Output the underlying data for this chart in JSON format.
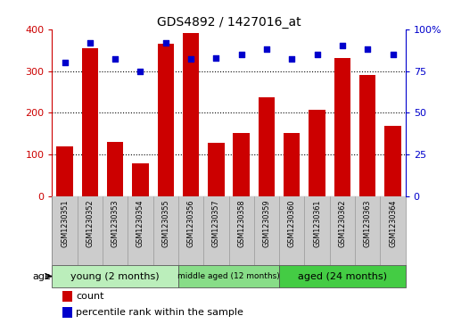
{
  "title": "GDS4892 / 1427016_at",
  "samples": [
    "GSM1230351",
    "GSM1230352",
    "GSM1230353",
    "GSM1230354",
    "GSM1230355",
    "GSM1230356",
    "GSM1230357",
    "GSM1230358",
    "GSM1230359",
    "GSM1230360",
    "GSM1230361",
    "GSM1230362",
    "GSM1230363",
    "GSM1230364"
  ],
  "counts": [
    120,
    355,
    130,
    80,
    365,
    390,
    128,
    152,
    238,
    152,
    208,
    330,
    290,
    168
  ],
  "percentiles": [
    80,
    92,
    82,
    75,
    92,
    82,
    83,
    85,
    88,
    82,
    85,
    90,
    88,
    85
  ],
  "ylim_left": [
    0,
    400
  ],
  "ylim_right": [
    0,
    100
  ],
  "yticks_left": [
    0,
    100,
    200,
    300,
    400
  ],
  "yticks_right": [
    0,
    25,
    50,
    75,
    100
  ],
  "bar_color": "#cc0000",
  "dot_color": "#0000cc",
  "groups": [
    {
      "label": "young (2 months)",
      "start": 0,
      "end": 5,
      "color": "#bbeebb"
    },
    {
      "label": "middle aged (12 months)",
      "start": 5,
      "end": 9,
      "color": "#88dd88"
    },
    {
      "label": "aged (24 months)",
      "start": 9,
      "end": 14,
      "color": "#44cc44"
    }
  ],
  "age_label": "age",
  "legend_count": "count",
  "legend_percentile": "percentile rank within the sample",
  "sample_bg": "#cccccc",
  "plot_bg": "#ffffff"
}
